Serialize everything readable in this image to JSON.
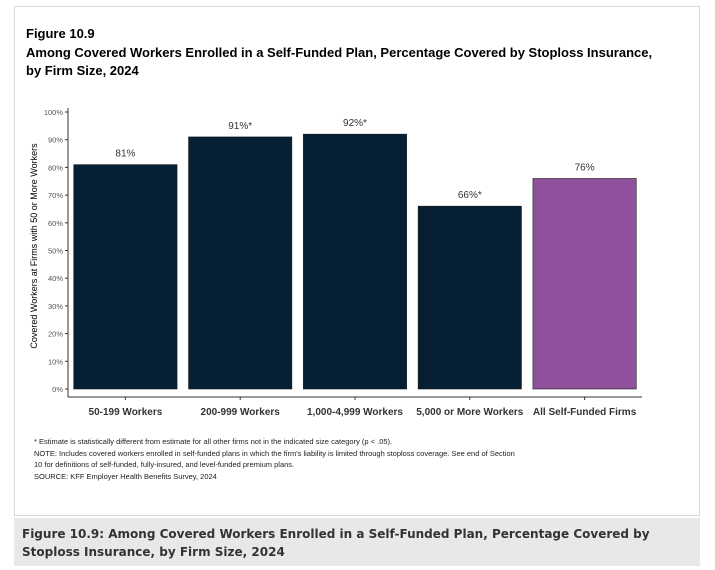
{
  "figure": {
    "label": "Figure 10.9",
    "title": "Among Covered Workers Enrolled in a Self-Funded Plan, Percentage Covered by Stoploss Insurance, by Firm Size, 2024"
  },
  "chart_data": {
    "type": "bar",
    "categories": [
      "50-199 Workers",
      "200-999 Workers",
      "1,000-4,999 Workers",
      "5,000 or More Workers",
      "All Self-Funded Firms"
    ],
    "values": [
      81,
      91,
      92,
      66,
      76
    ],
    "data_labels": [
      "81%",
      "91%*",
      "92%*",
      "66%*",
      "76%"
    ],
    "colors": [
      "#061f33",
      "#061f33",
      "#061f33",
      "#061f33",
      "#8f519c"
    ],
    "ylabel": "Covered Workers at Firms with 50 or More Workers",
    "xlabel": "",
    "ylim": [
      0,
      100
    ],
    "yticks": [
      0,
      10,
      20,
      30,
      40,
      50,
      60,
      70,
      80,
      90,
      100
    ],
    "ytick_labels": [
      "0%",
      "10%",
      "20%",
      "30%",
      "40%",
      "50%",
      "60%",
      "70%",
      "80%",
      "90%",
      "100%"
    ],
    "grid": false
  },
  "notes": {
    "estimate": "* Estimate is statistically different from estimate for all other firms not in the indicated size category (p < .05).",
    "note_line1": "NOTE: Includes covered workers enrolled in self-funded plans in which the firm's liability is limited through stoploss coverage. See end of Section",
    "note_line2": "10 for definitions of self-funded, fully-insured, and level-funded premium plans.",
    "source": "SOURCE: KFF Employer Health Benefits Survey, 2024"
  },
  "caption": {
    "text": "Figure 10.9: Among Covered Workers Enrolled in a Self-Funded Plan, Percentage Covered by Stoploss Insurance, by Firm Size, 2024"
  }
}
